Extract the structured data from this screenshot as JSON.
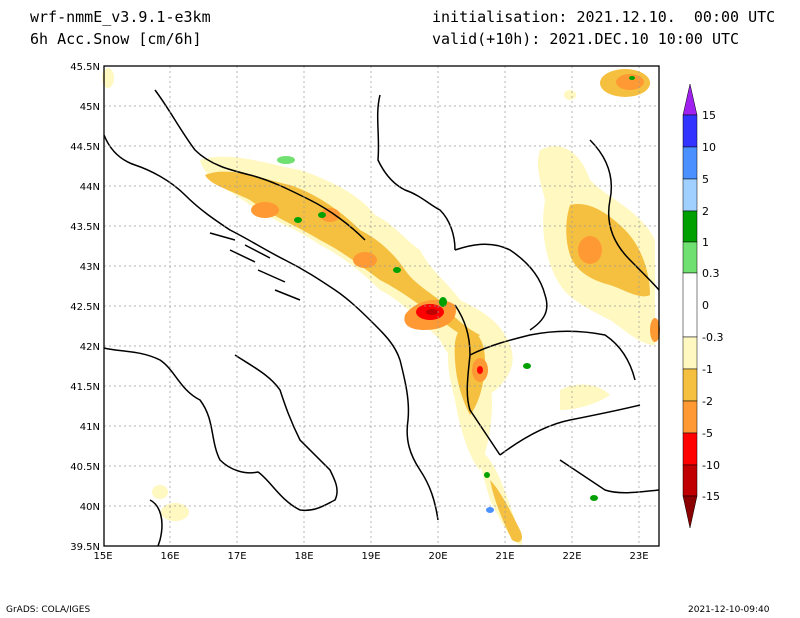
{
  "header": {
    "model": "wrf-nmmE_v3.9.1-e3km",
    "field": "6h Acc.Snow [cm/6h]",
    "initialisation": "initialisation: 2021.12.10.  00:00 UTC",
    "valid": "valid(+10h): 2021.DEC.10 10:00 UTC"
  },
  "footer": {
    "left": "GrADS: COLA/IGES",
    "right": "2021-12-10-09:40"
  },
  "map": {
    "lon_labels": [
      "15E",
      "16E",
      "17E",
      "18E",
      "19E",
      "20E",
      "21E",
      "22E",
      "23E"
    ],
    "lat_labels": [
      "45.5N",
      "45N",
      "44.5N",
      "44N",
      "43.5N",
      "43N",
      "42.5N",
      "42N",
      "41.5N",
      "41N",
      "40.5N",
      "40N",
      "39.5N"
    ],
    "lon_range": [
      15,
      23.3
    ],
    "lat_range": [
      39.5,
      45.5
    ],
    "grid": true
  },
  "colorbar": {
    "labels": [
      "15",
      "10",
      "5",
      "2",
      "1",
      "0.3",
      "0",
      "-0.3",
      "-1",
      "-2",
      "-5",
      "-10",
      "-15"
    ],
    "colors": [
      "#a020f0",
      "#3333ff",
      "#4a90ff",
      "#a0d0ff",
      "#00a000",
      "#70e070",
      "#ffffff",
      "#fff8c0",
      "#f5c040",
      "#ff9933",
      "#ff0000",
      "#c00000",
      "#8b0000"
    ]
  }
}
